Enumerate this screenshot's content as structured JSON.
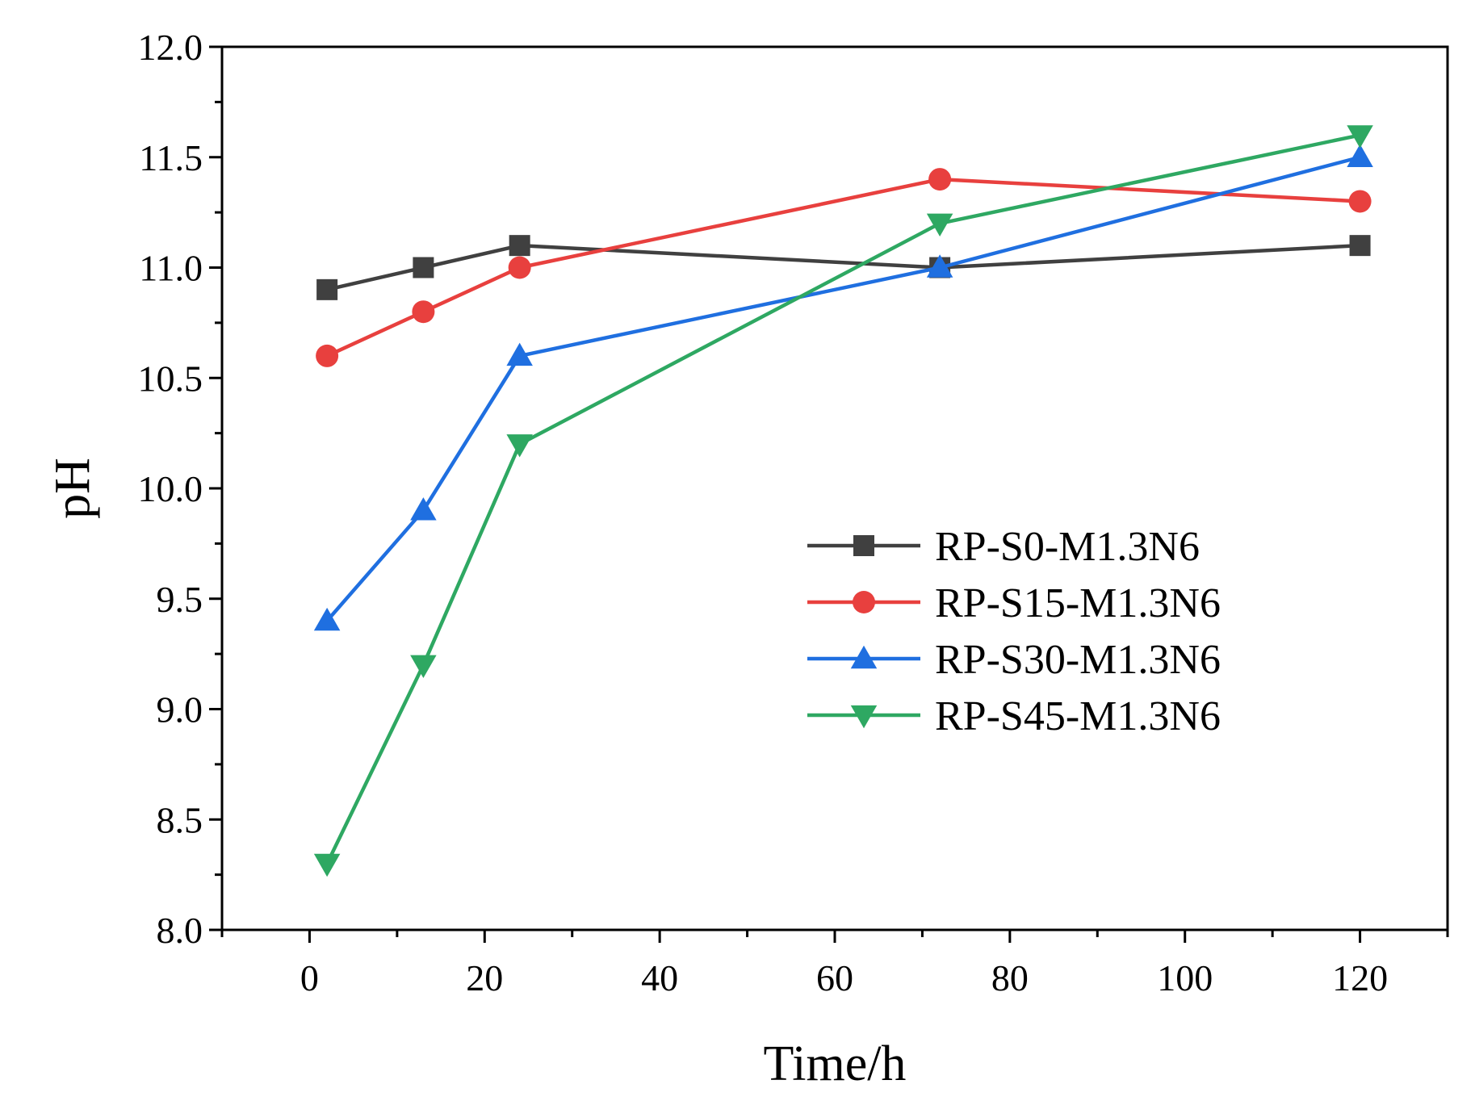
{
  "chart_data": {
    "type": "line",
    "title": "",
    "xlabel": "Time/h",
    "ylabel": "pH",
    "xlim": [
      -10,
      130
    ],
    "ylim": [
      8.0,
      12.0
    ],
    "x_ticks": [
      0,
      20,
      40,
      60,
      80,
      100,
      120
    ],
    "x_tick_labels": [
      "0",
      "20",
      "40",
      "60",
      "80",
      "100",
      "120"
    ],
    "y_ticks": [
      8.0,
      8.5,
      9.0,
      9.5,
      10.0,
      10.5,
      11.0,
      11.5,
      12.0
    ],
    "y_tick_labels": [
      "8.0",
      "8.5",
      "9.0",
      "9.5",
      "10.0",
      "10.5",
      "11.0",
      "11.5",
      "12.0"
    ],
    "grid": false,
    "legend_position": "center-right",
    "x": [
      2,
      13,
      24,
      72,
      120
    ],
    "series": [
      {
        "name": "RP-S0-M1.3N6",
        "values": [
          10.9,
          11.0,
          11.1,
          11.0,
          11.1
        ],
        "color": "#404040",
        "marker": "square"
      },
      {
        "name": "RP-S15-M1.3N6",
        "values": [
          10.6,
          10.8,
          11.0,
          11.4,
          11.3
        ],
        "color": "#e8403e",
        "marker": "circle"
      },
      {
        "name": "RP-S30-M1.3N6",
        "values": [
          9.4,
          9.9,
          10.6,
          11.0,
          11.5
        ],
        "color": "#1f6fe0",
        "marker": "triangle-up"
      },
      {
        "name": "RP-S45-M1.3N6",
        "values": [
          8.3,
          9.2,
          10.2,
          11.2,
          11.6
        ],
        "color": "#2ea862",
        "marker": "triangle-down"
      }
    ]
  }
}
